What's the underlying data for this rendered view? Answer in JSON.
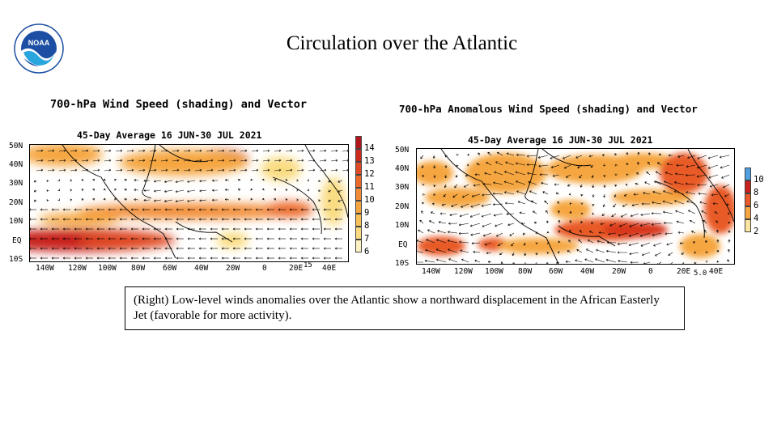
{
  "slide": {
    "title": "Circulation over the Atlantic",
    "logo_text": "NOAA",
    "caption": "(Right) Low-level  winds anomalies  over the Atlantic  show a northward displacement in the African Easterly Jet (favorable for more activity)."
  },
  "maps": [
    {
      "title": "700-hPa Wind Speed (shading) and Vector",
      "subtitle": "45-Day Average 16 JUN-30 JUL 2021",
      "lat_labels": [
        "50N",
        "40N",
        "30N",
        "20N",
        "10N",
        "EQ",
        "10S"
      ],
      "lon_labels": [
        "140W",
        "120W",
        "100W",
        "80W",
        "60W",
        "40W",
        "20W",
        "0",
        "20E",
        "40E"
      ],
      "colorbar_labels": [
        "14",
        "13",
        "12",
        "11",
        "10",
        "9",
        "8",
        "7",
        "6"
      ],
      "colorbar_colors": [
        "#b2181b",
        "#cc2a1d",
        "#e04a24",
        "#ec6b2b",
        "#f28c36",
        "#f5a640",
        "#f8c158",
        "#fadb80",
        "#fdf2c4"
      ],
      "reference_vector": "15",
      "colors": {
        "high": "#c8201c",
        "mid": "#f28c36",
        "low": "#fadb80"
      }
    },
    {
      "title": "700-hPa Anomalous Wind Speed (shading) and Vector",
      "subtitle": "45-Day Average 16 JUN-30 JUL 2021",
      "lat_labels": [
        "50N",
        "40N",
        "30N",
        "20N",
        "10N",
        "EQ",
        "10S"
      ],
      "lon_labels": [
        "140W",
        "120W",
        "100W",
        "80W",
        "60W",
        "40W",
        "20W",
        "0",
        "20E",
        "40E"
      ],
      "colorbar_labels": [
        "10",
        "8",
        "6",
        "4",
        "2"
      ],
      "colorbar_colors": [
        "#4f9ee0",
        "#c8201c",
        "#e85a28",
        "#f5a640",
        "#fbe4a0"
      ],
      "reference_vector": "5.0",
      "colors": {
        "high": "#d8391f",
        "mid": "#f5a640",
        "low": "#fbe4a0"
      }
    }
  ]
}
